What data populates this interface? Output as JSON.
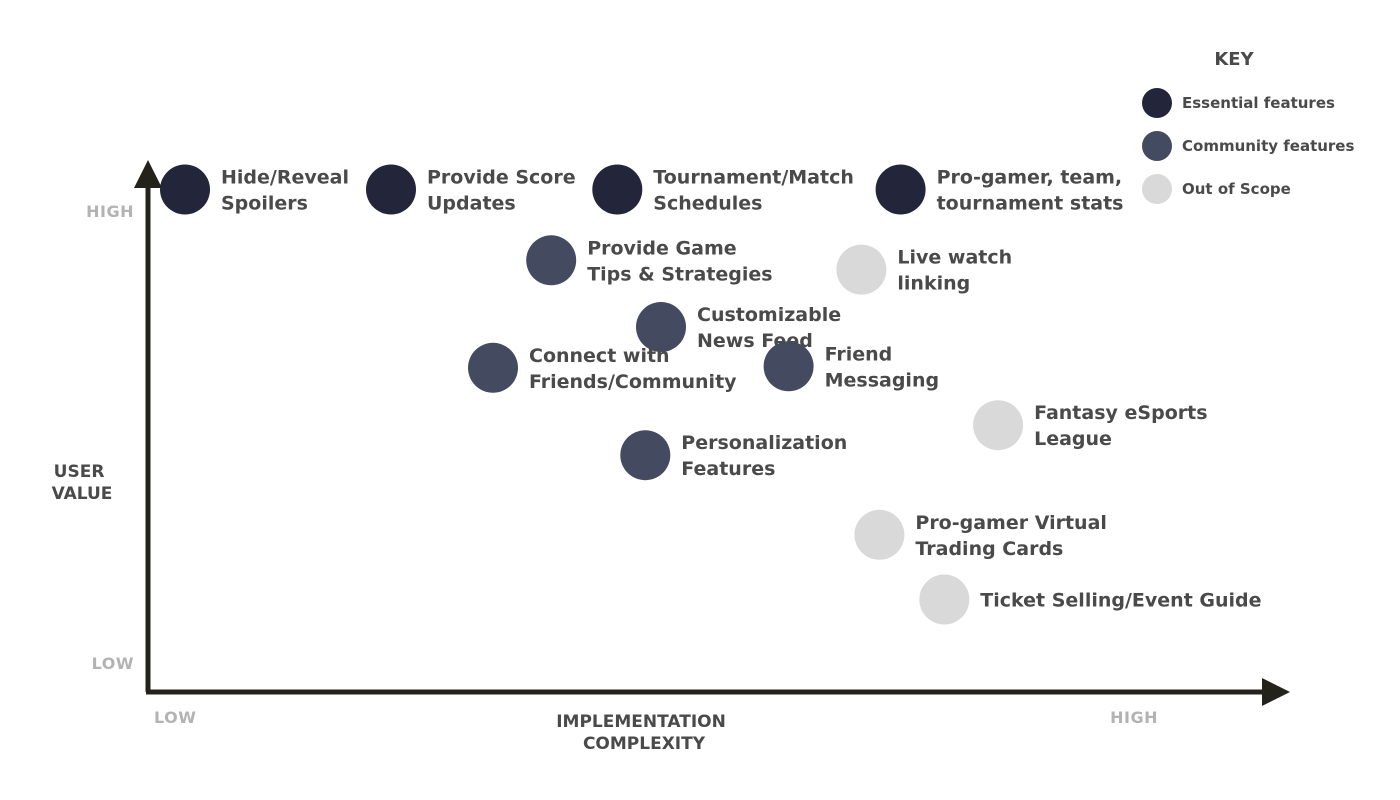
{
  "chart_data": {
    "type": "scatter",
    "title": "",
    "xlabel": [
      "IMPLEMENTATION",
      "COMPLEXITY"
    ],
    "ylabel": [
      "USER",
      "VALUE"
    ],
    "xlim": [
      0,
      100
    ],
    "ylim": [
      0,
      100
    ],
    "x_ticks": {
      "low": "LOW",
      "high": "HIGH"
    },
    "y_ticks": {
      "low": "LOW",
      "high": "HIGH"
    },
    "grid": false,
    "legend_placement": "top-right",
    "legend": {
      "title": "KEY",
      "entries": [
        {
          "label": "Essential features",
          "color": "#23263a"
        },
        {
          "label": "Community features",
          "color": "#444a60"
        },
        {
          "label": "Out of Scope",
          "color": "#d9d9d9"
        }
      ]
    },
    "points": [
      {
        "label": [
          "Hide/Reveal",
          "Spoilers"
        ],
        "category": "Essential features",
        "x": 3.3,
        "y": 97.2
      },
      {
        "label": [
          "Provide Score",
          "Updates"
        ],
        "category": "Essential features",
        "x": 21.7,
        "y": 97.2
      },
      {
        "label": [
          "Tournament/Match",
          "Schedules"
        ],
        "category": "Essential features",
        "x": 41.9,
        "y": 97.2
      },
      {
        "label": [
          "Pro-gamer, team,",
          "tournament stats"
        ],
        "category": "Essential features",
        "x": 67.2,
        "y": 97.2
      },
      {
        "label": [
          "Provide Game",
          "Tips & Strategies"
        ],
        "category": "Community features",
        "x": 36.0,
        "y": 83.5
      },
      {
        "label": [
          "Customizable",
          "News Feed"
        ],
        "category": "Community features",
        "x": 45.8,
        "y": 70.6
      },
      {
        "label": [
          "Connect with",
          "Friends/Community"
        ],
        "category": "Community features",
        "x": 30.8,
        "y": 62.7
      },
      {
        "label": [
          "Friend",
          "Messaging"
        ],
        "category": "Community features",
        "x": 57.2,
        "y": 63.0
      },
      {
        "label": [
          "Personalization",
          "Features"
        ],
        "category": "Community features",
        "x": 44.4,
        "y": 45.8
      },
      {
        "label": [
          "Live watch",
          "linking"
        ],
        "category": "Out of Scope",
        "x": 63.7,
        "y": 81.7
      },
      {
        "label": [
          "Fantasy eSports",
          "League"
        ],
        "category": "Out of Scope",
        "x": 75.9,
        "y": 51.6
      },
      {
        "label": [
          "Pro-gamer Virtual",
          "Trading Cards"
        ],
        "category": "Out of Scope",
        "x": 65.3,
        "y": 30.4
      },
      {
        "label": [
          "Ticket Selling/Event Guide"
        ],
        "category": "Out of Scope",
        "x": 71.1,
        "y": 17.9
      }
    ]
  }
}
